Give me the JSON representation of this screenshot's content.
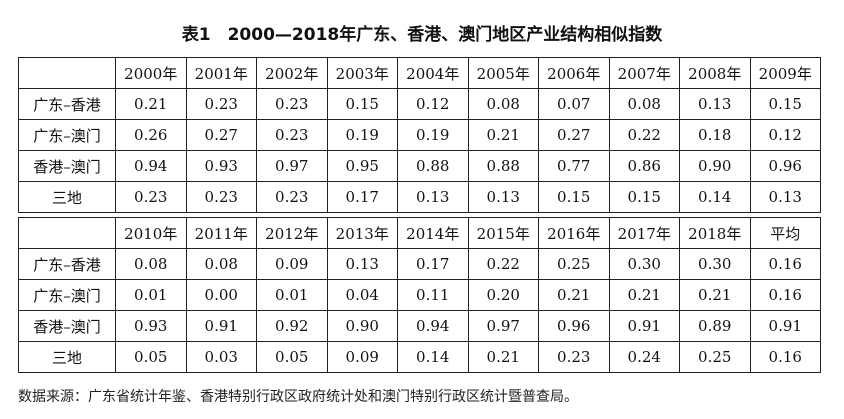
{
  "title": "表1　2000—2018年广东、香港、澳门地区产业结构相似指数",
  "tables": [
    {
      "columns": [
        "2000年",
        "2001年",
        "2002年",
        "2003年",
        "2004年",
        "2005年",
        "2006年",
        "2007年",
        "2008年",
        "2009年"
      ],
      "rows": [
        {
          "label": "广东–香港",
          "values": [
            "0.21",
            "0.23",
            "0.23",
            "0.15",
            "0.12",
            "0.08",
            "0.07",
            "0.08",
            "0.13",
            "0.15"
          ]
        },
        {
          "label": "广东–澳门",
          "values": [
            "0.26",
            "0.27",
            "0.23",
            "0.19",
            "0.19",
            "0.21",
            "0.27",
            "0.22",
            "0.18",
            "0.12"
          ]
        },
        {
          "label": "香港–澳门",
          "values": [
            "0.94",
            "0.93",
            "0.97",
            "0.95",
            "0.88",
            "0.88",
            "0.77",
            "0.86",
            "0.90",
            "0.96"
          ]
        },
        {
          "label": "三地",
          "values": [
            "0.23",
            "0.23",
            "0.23",
            "0.17",
            "0.13",
            "0.13",
            "0.15",
            "0.15",
            "0.14",
            "0.13"
          ]
        }
      ]
    },
    {
      "columns": [
        "2010年",
        "2011年",
        "2012年",
        "2013年",
        "2014年",
        "2015年",
        "2016年",
        "2017年",
        "2018年",
        "平均"
      ],
      "rows": [
        {
          "label": "广东–香港",
          "values": [
            "0.08",
            "0.08",
            "0.09",
            "0.13",
            "0.17",
            "0.22",
            "0.25",
            "0.30",
            "0.30",
            "0.16"
          ]
        },
        {
          "label": "广东–澳门",
          "values": [
            "0.01",
            "0.00",
            "0.01",
            "0.04",
            "0.11",
            "0.20",
            "0.21",
            "0.21",
            "0.21",
            "0.16"
          ]
        },
        {
          "label": "香港–澳门",
          "values": [
            "0.93",
            "0.91",
            "0.92",
            "0.90",
            "0.94",
            "0.97",
            "0.96",
            "0.91",
            "0.89",
            "0.91"
          ]
        },
        {
          "label": "三地",
          "values": [
            "0.05",
            "0.03",
            "0.05",
            "0.09",
            "0.14",
            "0.21",
            "0.23",
            "0.24",
            "0.25",
            "0.16"
          ]
        }
      ]
    }
  ],
  "note": "数据来源：广东省统计年鉴、香港特别行政区政府统计处和澳门特别行政区统计暨普查局。"
}
